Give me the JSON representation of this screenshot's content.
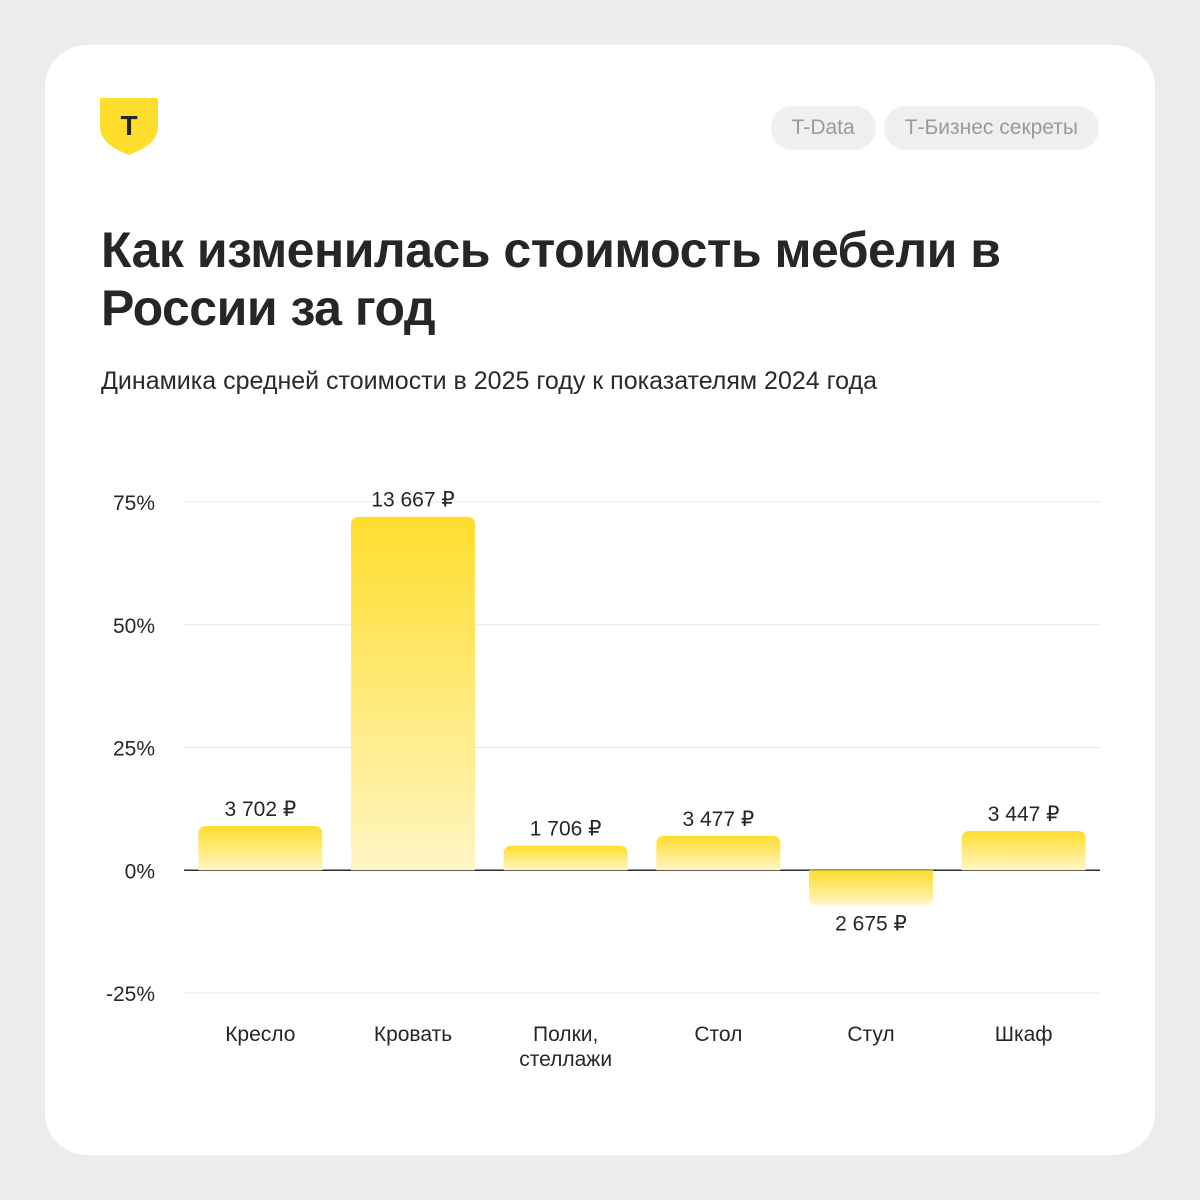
{
  "brand": {
    "logo_letter": "T",
    "tags": [
      "T-Data",
      "Т-Бизнес секреты"
    ]
  },
  "header": {
    "title": "Как изменилась стоимость мебели в России за год",
    "subtitle": "Динамика средней стоимости в 2025 году к показателям 2024 года"
  },
  "colors": {
    "bar_top": "#ffdd2d",
    "bar_bottom": "#fff6c4",
    "logo_yellow": "#ffdd2d",
    "text_dark": "#262628",
    "grid": "#e8e8ea"
  },
  "chart_data": {
    "type": "bar",
    "categories": [
      "Кресло",
      "Кровать",
      "Полки,\nстеллажи",
      "Стол",
      "Стул",
      "Шкаф"
    ],
    "values": [
      9,
      72,
      5,
      7,
      -7,
      8
    ],
    "data_labels": [
      "3 702 ₽",
      "13 667 ₽",
      "1 706 ₽",
      "3 477 ₽",
      "2 675 ₽",
      "3 447 ₽"
    ],
    "y_ticks": [
      75,
      50,
      25,
      0,
      -25
    ],
    "y_tick_labels": [
      "75%",
      "50%",
      "25%",
      "0%",
      "-25%"
    ],
    "ylim": [
      -25,
      75
    ],
    "grid": true,
    "title": "",
    "xlabel": "",
    "ylabel": ""
  }
}
